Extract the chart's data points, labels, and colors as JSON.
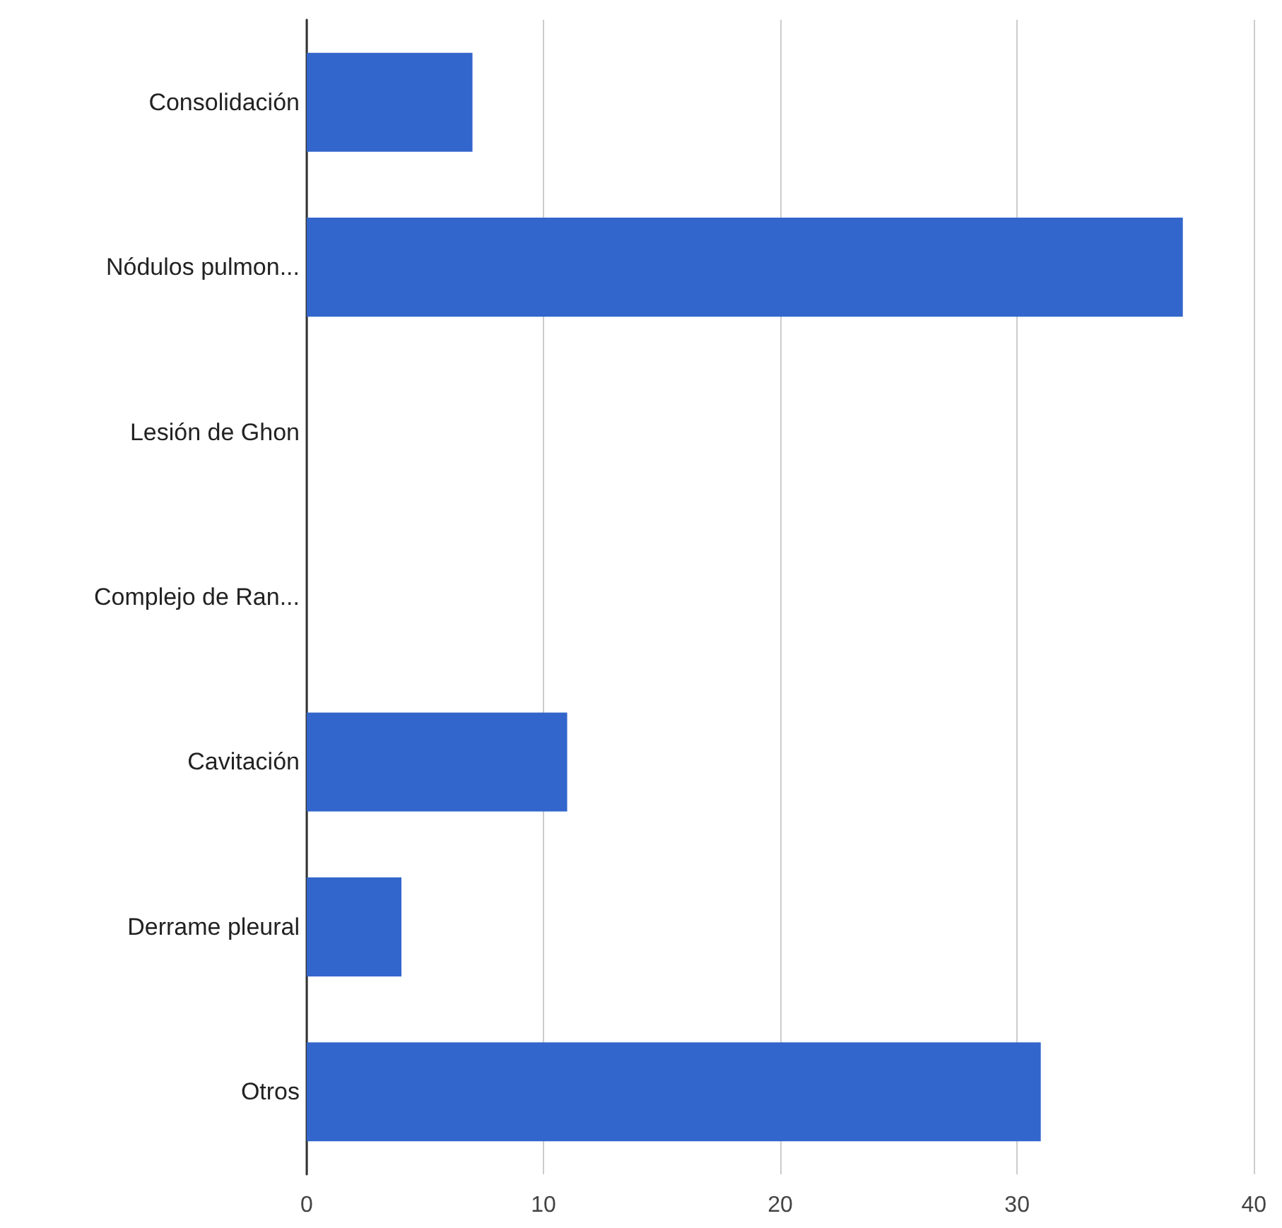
{
  "chart_data": {
    "type": "bar",
    "orientation": "horizontal",
    "categories": [
      "Consolidación",
      "Nódulos pulmon...",
      "Lesión de Ghon",
      "Complejo de Ran...",
      "Cavitación",
      "Derrame pleural",
      "Otros"
    ],
    "values": [
      7,
      37,
      0,
      0,
      11,
      4,
      31
    ],
    "color": "#3366cc",
    "xlim": [
      0,
      40
    ],
    "xticks": [
      0,
      10,
      20,
      30,
      40
    ],
    "grid": "x"
  }
}
